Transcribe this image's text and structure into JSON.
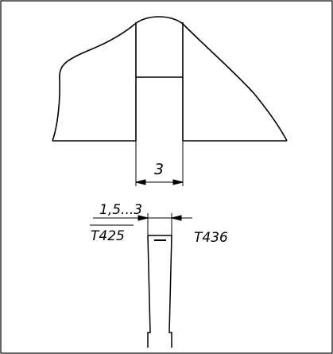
{
  "drawing": {
    "upper_view": {
      "groove_width_dimension": "3"
    },
    "lower_view": {
      "tip_width_dimension": "1,5...3",
      "left_tool_code": "T425",
      "right_tool_code": "T436"
    }
  }
}
